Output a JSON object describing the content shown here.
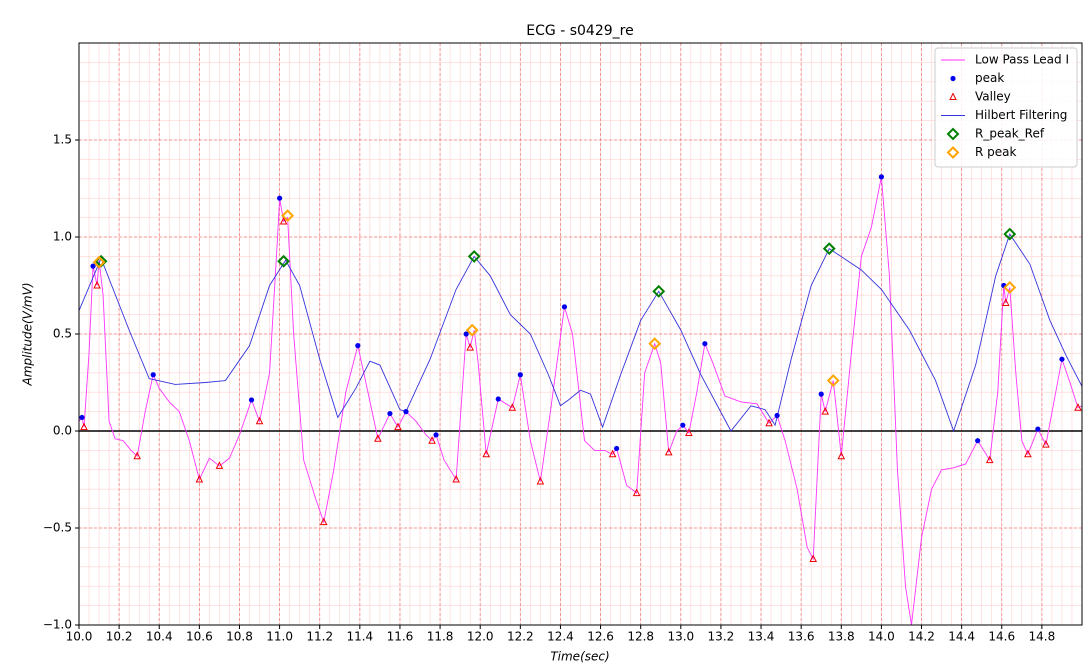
{
  "chart_data": {
    "type": "line",
    "title": "ECG - s0429_re",
    "x_label": "Time(sec)",
    "y_label": "Amplitude(V/mV)",
    "xlim": [
      10,
      15
    ],
    "ylim": [
      -1,
      2
    ],
    "xticks": [
      {
        "value": 10,
        "label": "10.0"
      },
      10.2,
      10.4,
      10.6,
      10.8,
      {
        "value": 11,
        "label": "11.0"
      },
      11.2,
      11.4,
      11.6,
      11.8,
      {
        "value": 12,
        "label": "12.0"
      },
      12.2,
      12.4,
      12.6,
      12.8,
      {
        "value": 13,
        "label": "13.0"
      },
      13.2,
      13.4,
      13.6,
      13.8,
      {
        "value": 14,
        "label": "14.0"
      },
      14.2,
      14.4,
      14.6,
      14.8
    ],
    "yticks": [
      {
        "value": -1,
        "label": "−1.0"
      },
      {
        "value": -0.5,
        "label": "−0.5"
      },
      {
        "value": 0,
        "label": "0.0"
      },
      0.5,
      {
        "value": 1,
        "label": "1.0"
      },
      1.5
    ],
    "grid": true,
    "minor_grid": true,
    "legend": "upper right",
    "series": [
      {
        "name": "Low Pass Lead I",
        "color": "#ff33ff",
        "marker": "line",
        "x": [
          10.0,
          10.015,
          10.025,
          10.05,
          10.07,
          10.09,
          10.1,
          10.12,
          10.15,
          10.18,
          10.22,
          10.26,
          10.29,
          10.33,
          10.37,
          10.4,
          10.45,
          10.5,
          10.55,
          10.6,
          10.65,
          10.7,
          10.75,
          10.8,
          10.86,
          10.9,
          10.95,
          10.99,
          11.0,
          11.02,
          11.04,
          11.07,
          11.12,
          11.18,
          11.22,
          11.27,
          11.33,
          11.39,
          11.43,
          11.49,
          11.55,
          11.59,
          11.63,
          11.68,
          11.73,
          11.76,
          11.78,
          11.82,
          11.88,
          11.93,
          11.95,
          11.97,
          11.99,
          12.03,
          12.09,
          12.16,
          12.2,
          12.25,
          12.3,
          12.35,
          12.42,
          12.46,
          12.52,
          12.57,
          12.62,
          12.66,
          12.68,
          12.73,
          12.78,
          12.82,
          12.87,
          12.9,
          12.94,
          12.98,
          13.01,
          13.04,
          13.08,
          13.12,
          13.16,
          13.22,
          13.3,
          13.38,
          13.44,
          13.48,
          13.52,
          13.58,
          13.63,
          13.66,
          13.7,
          13.72,
          13.76,
          13.8,
          13.85,
          13.9,
          13.95,
          14.0,
          14.04,
          14.08,
          14.12,
          14.15,
          14.2,
          14.25,
          14.3,
          14.36,
          14.42,
          14.48,
          14.54,
          14.58,
          14.61,
          14.62,
          14.64,
          14.67,
          14.7,
          14.73,
          14.78,
          14.82,
          14.86,
          14.9,
          14.94,
          14.98,
          15.0
        ],
        "values": [
          0.05,
          0.07,
          0.02,
          0.4,
          0.85,
          0.75,
          0.88,
          0.7,
          0.05,
          -0.04,
          -0.05,
          -0.1,
          -0.13,
          0.1,
          0.29,
          0.22,
          0.15,
          0.1,
          -0.05,
          -0.25,
          -0.14,
          -0.18,
          -0.14,
          -0.02,
          0.16,
          0.05,
          0.3,
          1.0,
          1.2,
          1.08,
          1.1,
          0.5,
          -0.15,
          -0.35,
          -0.47,
          -0.2,
          0.2,
          0.44,
          0.25,
          -0.04,
          0.09,
          0.02,
          0.1,
          0.05,
          -0.02,
          -0.05,
          -0.02,
          -0.15,
          -0.25,
          0.5,
          0.43,
          0.52,
          0.35,
          -0.12,
          0.165,
          0.12,
          0.29,
          -0.05,
          -0.26,
          0.1,
          0.64,
          0.5,
          -0.05,
          -0.1,
          -0.1,
          -0.12,
          -0.09,
          -0.28,
          -0.32,
          0.3,
          0.45,
          0.35,
          -0.11,
          0.0,
          0.03,
          -0.01,
          0.2,
          0.45,
          0.35,
          0.18,
          0.15,
          0.14,
          0.04,
          0.08,
          -0.05,
          -0.3,
          -0.6,
          -0.66,
          0.19,
          0.1,
          0.26,
          -0.13,
          0.4,
          0.9,
          1.05,
          1.31,
          0.8,
          -0.2,
          -0.8,
          -1.0,
          -0.55,
          -0.3,
          -0.2,
          -0.19,
          -0.17,
          -0.05,
          -0.15,
          0.2,
          0.75,
          0.66,
          0.74,
          0.3,
          -0.05,
          -0.12,
          0.01,
          -0.07,
          0.15,
          0.37,
          0.25,
          0.12,
          0.13
        ]
      },
      {
        "name": "peak",
        "color": "#0000ee",
        "marker": "o",
        "x": [
          10.015,
          10.07,
          10.37,
          10.86,
          11.0,
          11.39,
          11.55,
          11.63,
          11.78,
          11.93,
          12.09,
          12.2,
          12.42,
          12.68,
          13.01,
          13.12,
          13.48,
          13.7,
          14.0,
          14.48,
          14.61,
          14.78,
          14.9
        ],
        "values": [
          0.07,
          0.85,
          0.29,
          0.16,
          1.2,
          0.44,
          0.09,
          0.1,
          -0.02,
          0.5,
          0.165,
          0.29,
          0.64,
          -0.09,
          0.03,
          0.45,
          0.08,
          0.19,
          1.31,
          -0.05,
          0.75,
          0.01,
          0.37
        ]
      },
      {
        "name": "Valley",
        "color": "#ee0000",
        "marker": "^",
        "x": [
          10.025,
          10.09,
          10.29,
          10.6,
          10.7,
          10.9,
          11.02,
          11.22,
          11.49,
          11.59,
          11.76,
          11.88,
          11.95,
          12.03,
          12.16,
          12.3,
          12.66,
          12.78,
          12.94,
          13.04,
          13.44,
          13.66,
          13.72,
          13.8,
          14.54,
          14.62,
          14.73,
          14.82,
          14.98
        ],
        "values": [
          0.02,
          0.75,
          -0.13,
          -0.25,
          -0.18,
          0.05,
          1.08,
          -0.47,
          -0.04,
          0.02,
          -0.05,
          -0.25,
          0.43,
          -0.12,
          0.12,
          -0.26,
          -0.12,
          -0.32,
          -0.11,
          -0.01,
          0.04,
          -0.66,
          0.1,
          -0.13,
          -0.15,
          0.66,
          -0.12,
          -0.07,
          0.12
        ]
      },
      {
        "name": "Hilbert Filtering",
        "color": "#3333dd",
        "marker": "line",
        "x": [
          10.0,
          10.11,
          10.25,
          10.35,
          10.48,
          10.63,
          10.73,
          10.85,
          10.95,
          11.03,
          11.1,
          11.2,
          11.29,
          11.38,
          11.45,
          11.5,
          11.6,
          11.63,
          11.75,
          11.88,
          11.97,
          12.05,
          12.15,
          12.25,
          12.34,
          12.4,
          12.44,
          12.5,
          12.55,
          12.61,
          12.7,
          12.8,
          12.89,
          13.0,
          13.1,
          13.25,
          13.35,
          13.42,
          13.47,
          13.55,
          13.65,
          13.74,
          13.9,
          14.0,
          14.14,
          14.27,
          14.36,
          14.47,
          14.57,
          14.64,
          14.74,
          14.84,
          14.92,
          15.0
        ],
        "values": [
          0.62,
          0.89,
          0.52,
          0.27,
          0.24,
          0.25,
          0.26,
          0.44,
          0.75,
          0.88,
          0.75,
          0.37,
          0.07,
          0.22,
          0.36,
          0.34,
          0.11,
          0.1,
          0.37,
          0.73,
          0.9,
          0.8,
          0.6,
          0.5,
          0.29,
          0.13,
          0.16,
          0.21,
          0.19,
          0.02,
          0.29,
          0.57,
          0.72,
          0.52,
          0.29,
          0.0,
          0.13,
          0.11,
          0.03,
          0.37,
          0.75,
          0.94,
          0.83,
          0.73,
          0.52,
          0.26,
          0.0,
          0.34,
          0.8,
          1.015,
          0.86,
          0.57,
          0.39,
          0.23
        ]
      },
      {
        "name": "R_peak_Ref",
        "color": "#008000",
        "marker": "D",
        "x": [
          10.11,
          11.02,
          11.97,
          12.89,
          13.74,
          14.64
        ],
        "values": [
          0.875,
          0.875,
          0.9,
          0.72,
          0.94,
          1.015
        ]
      },
      {
        "name": "R peak",
        "color": "#ffa500",
        "marker": "D",
        "x": [
          10.1,
          11.04,
          11.96,
          12.87,
          13.76,
          14.64
        ],
        "values": [
          0.87,
          1.11,
          0.52,
          0.45,
          0.26,
          0.74
        ]
      }
    ]
  }
}
